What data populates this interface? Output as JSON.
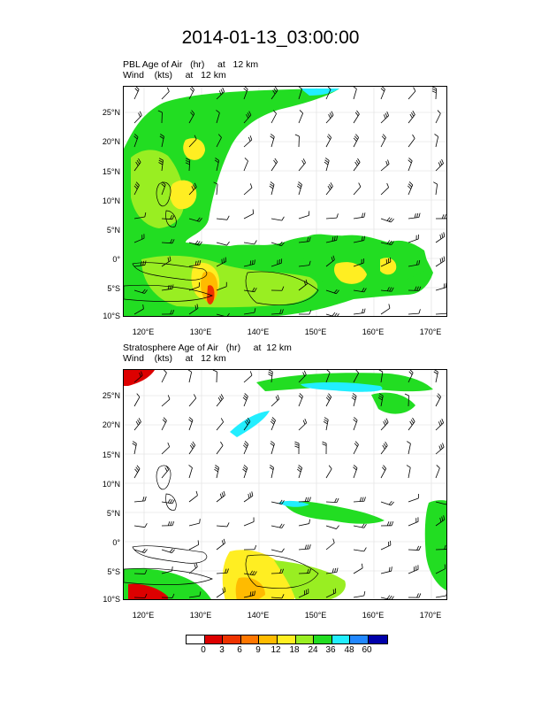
{
  "title": "2014-01-13_03:00:00",
  "panels": [
    {
      "subtitle_line1": "PBL Age of Air   (hr)     at   12 km",
      "subtitle_line2": "Wind    (kts)     at   12 km"
    },
    {
      "subtitle_line1": "Stratosphere Age of Air   (hr)     at  12 km",
      "subtitle_line2": "Wind    (kts)     at   12 km"
    }
  ],
  "lat_labels": [
    "25°N",
    "20°N",
    "15°N",
    "10°N",
    "5°N",
    "0°",
    "5°S",
    "10°S"
  ],
  "lon_labels": [
    "120°E",
    "130°E",
    "140°E",
    "150°E",
    "160°E",
    "170°E"
  ],
  "colorbar": {
    "labels": [
      "0",
      "3",
      "6",
      "9",
      "12",
      "18",
      "24",
      "36",
      "48",
      "60"
    ],
    "colors": [
      "#ffffff",
      "#dd0000",
      "#ee3300",
      "#ff7700",
      "#ffbb00",
      "#ffee22",
      "#99ee22",
      "#22dd22",
      "#22eeff",
      "#2288ff",
      "#0000aa"
    ]
  }
}
